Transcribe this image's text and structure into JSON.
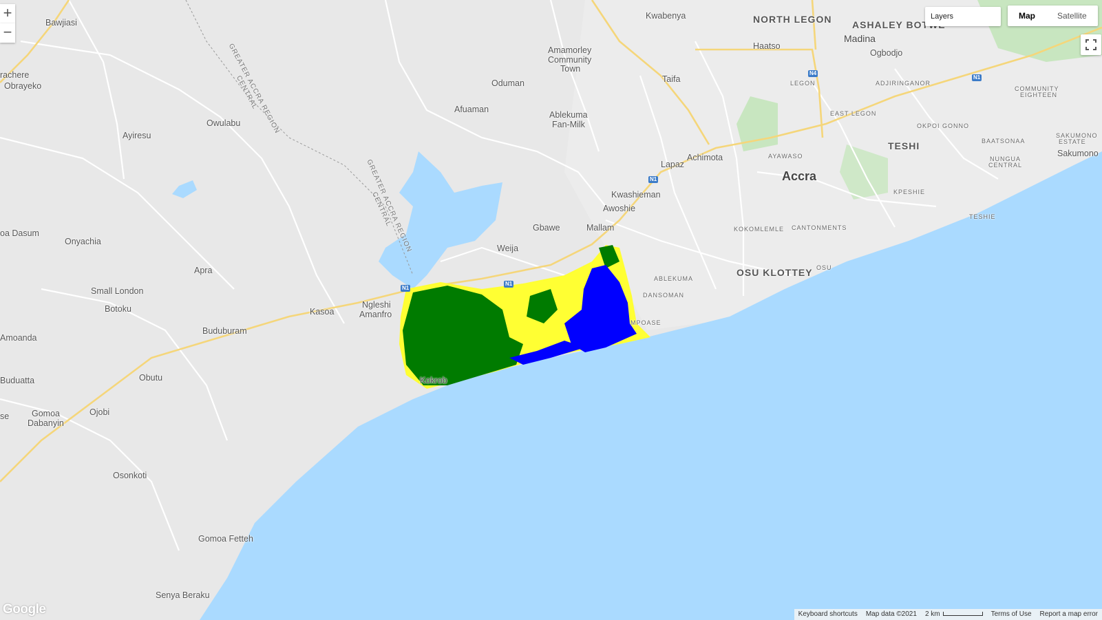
{
  "map": {
    "land_color": "#e8e8e8",
    "water_color": "#aadaff",
    "road_color": "#ffffff",
    "highway_color": "#f5d67a",
    "classification_colors": {
      "vegetation": "#007b00",
      "bare": "#ffff33",
      "water": "#0000ff"
    }
  },
  "controls": {
    "zoom_in": "+",
    "zoom_out": "−",
    "layers_label": "Layers",
    "maptype_map": "Map",
    "maptype_satellite": "Satellite",
    "fullscreen_icon": "fullscreen-icon"
  },
  "places": {
    "bawjiasi": "Bawjiasi",
    "rachere": "rachere",
    "obrayeko": "Obrayeko",
    "owulabu": "Owulabu",
    "ayiresu": "Ayiresu",
    "oa_dasum": "oa Dasum",
    "onyachia": "Onyachia",
    "apra": "Apra",
    "small_london": "Small London",
    "botoku": "Botoku",
    "amoanda": "Amoanda",
    "buduburam": "Buduburam",
    "kasoa": "Kasoa",
    "ngleshi": "Ngleshi",
    "amanfro": "Amanfro",
    "buduatta": "Buduatta",
    "obutu": "Obutu",
    "se": "se",
    "gomoa": "Gomoa",
    "dabanyin": "Dabanyin",
    "ojobi": "Ojobi",
    "osonkoti": "Osonkoti",
    "gomoa_fetteh": "Gomoa Fetteh",
    "senya_beraku": "Senya Beraku",
    "kokrobite": "Kokrob",
    "oduman": "Oduman",
    "afuaman": "Afuaman",
    "amamorley1": "Amamorley",
    "amamorley2": "Community",
    "amamorley3": "Town",
    "ablekuma_fm1": "Ablekuma",
    "ablekuma_fm2": "Fan-Milk",
    "kwabenya": "Kwabenya",
    "taifa": "Taifa",
    "haatso": "Haatso",
    "madina": "Madina",
    "ogbodjo": "Ogbodjo",
    "north_legon": "NORTH LEGON",
    "ashaley_botwe": "ASHALEY BOTWE",
    "legon": "LEGON",
    "adjiringanor": "ADJIRINGANOR",
    "east_legon": "EAST LEGON",
    "okpoi_gonno": "OKPOI GONNO",
    "teshi": "TESHI",
    "community_eighteen1": "COMMUNITY",
    "community_eighteen2": "EIGHTEEN",
    "baatsonaa": "BAATSONAA",
    "sakumono_estate1": "SAKUMONO",
    "sakumono_estate2": "ESTATE",
    "sakumono": "Sakumono",
    "nungua_central1": "NUNGUA",
    "nungua_central2": "CENTRAL",
    "ayawaso": "AYAWASO",
    "achimota": "Achimota",
    "lapaz": "Lapaz",
    "accra": "Accra",
    "kpeshie": "KPESHIE",
    "teshie": "TESHIE",
    "kwashieman": "Kwashieman",
    "awoshie": "Awoshie",
    "gbawe": "Gbawe",
    "mallam": "Mallam",
    "weija": "Weija",
    "kokomlemle": "KOKOMLEMLE",
    "cantonments": "CANTONMENTS",
    "osu_klottey": "OSU KLOTTEY",
    "osu": "OSU",
    "ablekuma": "ABLEKUMA",
    "dansoman": "DANSOMAN",
    "mpoase": "MPOASE",
    "region1": "GREATER ACCRA REGION",
    "region1b": "CENTRAL",
    "region2": "GREATER ACCRA REGION",
    "region2b": "CENTRAL"
  },
  "shields": {
    "n1_a": "N1",
    "n1_b": "N1",
    "n1_c": "N1",
    "n1_d": "N1",
    "n4": "N4"
  },
  "footer": {
    "keyboard": "Keyboard shortcuts",
    "mapdata": "Map data ©2021",
    "scale": "2 km",
    "terms": "Terms of Use",
    "report": "Report a map error"
  },
  "logo": "Google"
}
